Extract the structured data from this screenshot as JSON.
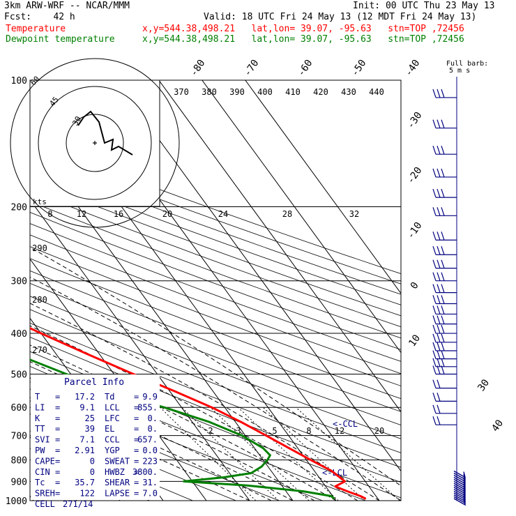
{
  "header": {
    "model": "3km ARW-WRF -- NCAR/MMM",
    "init": "Init: 00 UTC Thu 23 May 13",
    "fcst": "Fcst:    42 h",
    "valid": "Valid: 18 UTC Fri 24 May 13 (12 MDT Fri 24 May 13)",
    "temp_label": "Temperature",
    "temp_info": "x,y=544.38,498.21   lat,lon= 39.07, -95.63   stn=TOP ,72456",
    "dew_label": "Dewpoint temperature",
    "dew_info": "x,y=544.38,498.21   lat,lon= 39.07, -95.63   stn=TOP ,72456",
    "barb_legend": "Full barb:",
    "barb_unit": "5 m s"
  },
  "colors": {
    "temperature": "#ff0000",
    "dewpoint": "#008000",
    "wind": "#000080"
  },
  "chart_data": {
    "type": "line",
    "title": "Skew-T log-P sounding, stn TOP 72456",
    "pressure_levels": [
      "100",
      "200",
      "300",
      "400",
      "500",
      "600",
      "700",
      "800",
      "900",
      "1000"
    ],
    "top_temp_labels": [
      "-80",
      "-70",
      "-60",
      "-50",
      "-40"
    ],
    "right_temp_labels": [
      "-30",
      "-20",
      "-10",
      "0",
      "10"
    ],
    "lower_right_temp_labels": [
      "30",
      "40"
    ],
    "theta_labels": [
      "370",
      "380",
      "390",
      "400",
      "410",
      "420",
      "430",
      "440"
    ],
    "theta_left_labels": [
      "290",
      "280",
      "270"
    ],
    "mixing_ratio_labels_upper": [
      "8",
      "12",
      "16",
      "20",
      "24",
      "28",
      "32"
    ],
    "mixing_ratio_labels_lower": [
      "2",
      "3",
      "5",
      "8",
      "12",
      "20"
    ],
    "hodograph": {
      "unit_label": "kts",
      "ring_labels": [
        "30",
        "45",
        "60"
      ]
    },
    "annotations": {
      "lcl": "<-LCL",
      "ccl": "<-CCL"
    },
    "temperature": {
      "name": "Temperature",
      "pressure": [
        100,
        125,
        150,
        175,
        200,
        250,
        300,
        350,
        400,
        450,
        500,
        550,
        600,
        650,
        700,
        750,
        800,
        850,
        900,
        925,
        950,
        975,
        990
      ],
      "temp_c": [
        -57,
        -59.5,
        -62,
        -63.8,
        -61.5,
        -54.5,
        -46,
        -38,
        -30,
        -22.5,
        -15.5,
        -8.8,
        -3,
        1.3,
        4.8,
        8,
        11,
        14,
        15.3,
        12.2,
        14.2,
        16.4,
        17.2
      ]
    },
    "dewpoint": {
      "name": "Dewpoint temperature",
      "pressure": [
        100,
        150,
        175,
        200,
        220,
        250,
        270,
        300,
        340,
        370,
        400,
        450,
        500,
        550,
        600,
        650,
        700,
        750,
        780,
        800,
        830,
        860,
        880,
        900,
        920,
        950,
        975,
        990
      ],
      "dewpoint_c": [
        -71,
        -78,
        -82,
        -82,
        -82,
        -72,
        -58,
        -64,
        -74,
        -60,
        -52,
        -39,
        -31,
        -25,
        -14,
        -6,
        -0.8,
        2,
        2.4,
        1,
        -1.5,
        -5,
        -12,
        -22,
        -8,
        4,
        9.6,
        9.9
      ]
    },
    "parcel_info": {
      "title": "Parcel Info",
      "rows": [
        [
          "T",
          "17.2",
          "Td",
          "9.9"
        ],
        [
          "LI",
          "9.1",
          "LCL",
          "855."
        ],
        [
          "K",
          "25",
          "LFC",
          "0."
        ],
        [
          "TT",
          "39",
          "EL",
          "0."
        ],
        [
          "SVI",
          "7.1",
          "CCL",
          "657."
        ],
        [
          "PW",
          "2.91",
          "YGP",
          "0.0"
        ],
        [
          "CAPE",
          "0",
          "SWEAT",
          "223"
        ],
        [
          "CIN",
          "0",
          "HWBZ",
          "3800."
        ],
        [
          "Tc",
          "35.7",
          "SHEAR",
          "31."
        ],
        [
          "SREH",
          "122",
          "LAPSE",
          "7.0"
        ],
        [
          "CELL",
          "271/14",
          "",
          ""
        ]
      ]
    },
    "wind_barbs": {
      "pressure": [
        110,
        130,
        150,
        170,
        190,
        210,
        240,
        260,
        280,
        300,
        320,
        340,
        360,
        380,
        400,
        420,
        440,
        460,
        480,
        500,
        540,
        580,
        620,
        660
      ],
      "speed_ms": [
        30,
        30,
        30,
        30,
        30,
        30,
        30,
        30,
        30,
        30,
        30,
        30,
        30,
        30,
        30,
        30,
        30,
        30,
        25,
        25,
        20,
        20,
        15,
        15
      ]
    }
  }
}
